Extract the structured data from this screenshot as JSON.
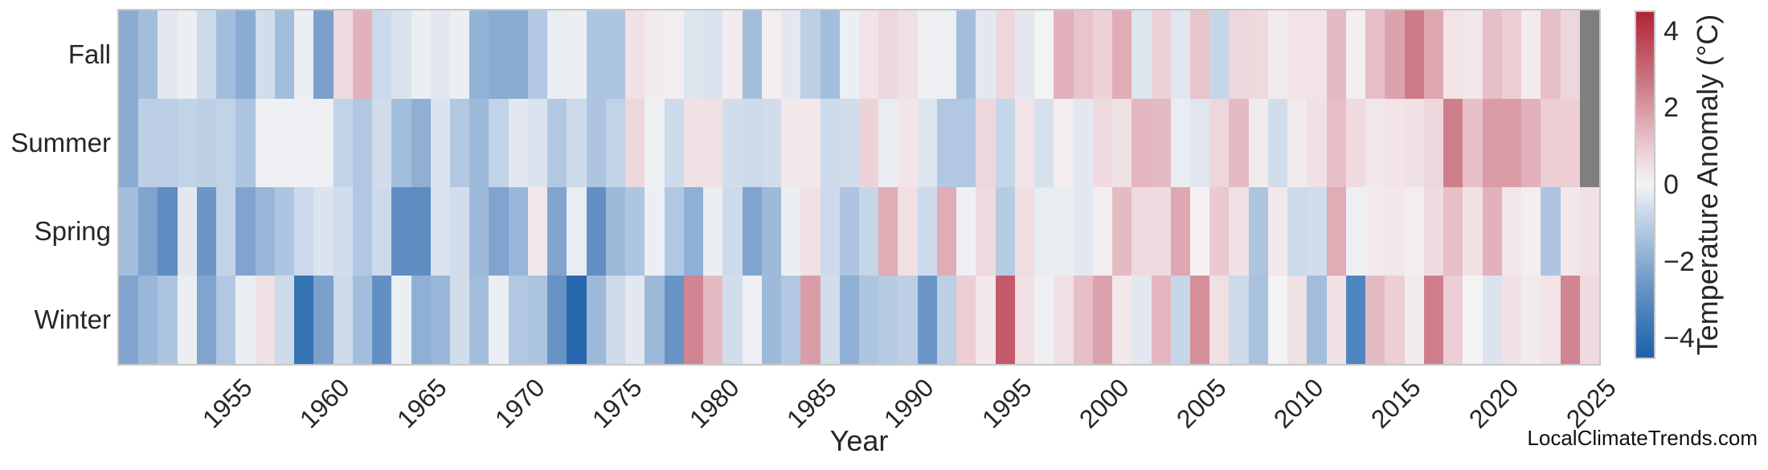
{
  "footer": {
    "watermark": "LocalClimateTrends.com"
  },
  "chart_data": {
    "type": "heatmap",
    "xlabel": "Year",
    "rows": [
      "Fall",
      "Summer",
      "Spring",
      "Winter"
    ],
    "years": [
      1950,
      1951,
      1952,
      1953,
      1954,
      1955,
      1956,
      1957,
      1958,
      1959,
      1960,
      1961,
      1962,
      1963,
      1964,
      1965,
      1966,
      1967,
      1968,
      1969,
      1970,
      1971,
      1972,
      1973,
      1974,
      1975,
      1976,
      1977,
      1978,
      1979,
      1980,
      1981,
      1982,
      1983,
      1984,
      1985,
      1986,
      1987,
      1988,
      1989,
      1990,
      1991,
      1992,
      1993,
      1994,
      1995,
      1996,
      1997,
      1998,
      1999,
      2000,
      2001,
      2002,
      2003,
      2004,
      2005,
      2006,
      2007,
      2008,
      2009,
      2010,
      2011,
      2012,
      2013,
      2014,
      2015,
      2016,
      2017,
      2018,
      2019,
      2020,
      2021,
      2022,
      2023,
      2024,
      2025
    ],
    "x_ticks": [
      1955,
      1960,
      1965,
      1970,
      1975,
      1980,
      1985,
      1990,
      1995,
      2000,
      2005,
      2010,
      2015,
      2020,
      2025
    ],
    "series": {
      "Fall": [
        -2.0,
        -1.5,
        -0.3,
        -0.15,
        -0.7,
        -1.5,
        -2.0,
        -0.6,
        -1.5,
        -0.15,
        -2.3,
        0.6,
        1.5,
        -0.7,
        -0.45,
        -0.15,
        -0.3,
        -0.15,
        -1.8,
        -2.0,
        -2.0,
        -1.2,
        -0.2,
        -0.15,
        -1.3,
        -1.3,
        0.45,
        0.2,
        0.15,
        -0.4,
        -0.45,
        0.2,
        -1.5,
        0.15,
        -0.3,
        -1.0,
        -1.5,
        -0.15,
        0.4,
        0.7,
        0.5,
        -0.1,
        -0.1,
        -1.5,
        -0.3,
        0.7,
        -0.3,
        0.0,
        1.5,
        1.1,
        0.8,
        1.6,
        -0.4,
        0.8,
        -0.35,
        1.1,
        -0.8,
        0.7,
        0.65,
        0.2,
        0.4,
        0.4,
        1.3,
        0.1,
        1.2,
        1.8,
        2.6,
        1.7,
        0.4,
        0.3,
        1.2,
        0.9,
        0.2,
        1.2,
        0.7,
        null
      ],
      "Summer": [
        -2.0,
        -1.0,
        -1.0,
        -0.9,
        -1.0,
        -0.9,
        -1.3,
        -0.1,
        -0.1,
        -0.1,
        -0.1,
        -0.9,
        -1.2,
        -0.6,
        -1.5,
        -1.9,
        -0.45,
        -1.2,
        -1.6,
        -0.9,
        -0.3,
        -0.45,
        -1.2,
        -0.7,
        -1.3,
        -0.9,
        0.7,
        -0.1,
        -0.7,
        0.45,
        0.45,
        -0.6,
        -0.7,
        -0.6,
        0.3,
        0.3,
        -0.7,
        -0.6,
        0.8,
        -0.2,
        0.35,
        -0.4,
        -1.2,
        -1.2,
        0.7,
        -0.8,
        0.4,
        -0.5,
        0.15,
        -0.3,
        0.6,
        0.45,
        1.4,
        1.3,
        -0.2,
        -0.35,
        0.7,
        1.3,
        0.2,
        -0.6,
        0.2,
        0.45,
        1.2,
        0.6,
        0.3,
        0.4,
        0.45,
        0.7,
        2.5,
        1.2,
        1.9,
        1.9,
        1.5,
        0.9,
        0.9,
        null
      ],
      "Spring": [
        -1.5,
        -2.2,
        -2.9,
        -0.3,
        -2.6,
        -0.9,
        -2.2,
        -1.7,
        -1.3,
        -0.7,
        -0.45,
        -0.6,
        -1.2,
        -0.7,
        -2.9,
        -2.9,
        -0.45,
        -0.6,
        -1.6,
        -2.2,
        -1.7,
        0.3,
        -2.2,
        -0.2,
        -2.8,
        -1.6,
        -1.3,
        -0.15,
        -1.2,
        -1.9,
        -0.15,
        -0.7,
        -2.2,
        -1.6,
        -0.15,
        0.45,
        -0.7,
        -1.3,
        -0.8,
        1.6,
        0.5,
        -0.7,
        1.6,
        -0.1,
        0.6,
        -1.1,
        0.55,
        -0.2,
        -0.2,
        -0.3,
        0.15,
        1.3,
        0.6,
        0.6,
        1.7,
        0.05,
        1.0,
        0.45,
        -1.3,
        0.3,
        -0.7,
        -0.6,
        1.6,
        -0.1,
        0.2,
        0.3,
        0.15,
        0.6,
        1.2,
        0.45,
        1.5,
        0.3,
        0.15,
        -1.3,
        0.3,
        0.45
      ],
      "Winter": [
        -2.2,
        -1.7,
        -1.3,
        -0.15,
        -2.2,
        -1.2,
        -0.15,
        0.45,
        -0.7,
        -3.8,
        -2.3,
        -0.7,
        -1.5,
        -2.8,
        -0.15,
        -1.9,
        -1.7,
        -0.6,
        -1.5,
        -0.15,
        -1.2,
        -1.3,
        -2.7,
        -4.2,
        -1.6,
        -0.7,
        -0.3,
        -1.6,
        -2.7,
        2.4,
        1.3,
        -0.6,
        -0.1,
        -1.6,
        -1.2,
        1.9,
        -0.6,
        -1.9,
        -1.3,
        -1.1,
        -1.0,
        -2.6,
        -1.0,
        0.9,
        0.3,
        3.3,
        0.5,
        -0.1,
        0.5,
        1.2,
        1.8,
        0.3,
        -0.3,
        1.4,
        -0.8,
        2.2,
        0.5,
        -0.7,
        -1.4,
        0.0,
        0.45,
        -1.5,
        0.45,
        -3.2,
        1.3,
        0.9,
        0.2,
        2.5,
        0.9,
        0.0,
        -0.45,
        0.45,
        0.2,
        0.4,
        2.4,
        0.6
      ]
    },
    "colorbar": {
      "label": "Temperature Anomaly (°C)",
      "ticks": [
        4,
        2,
        0,
        -2,
        -4
      ],
      "vmin": -4.5,
      "vmax": 4.5
    },
    "colors": {
      "missing": "#7f7f7f",
      "frame": "#c8c8c8",
      "scale_stops": [
        [
          -4.5,
          "#1f60a9"
        ],
        [
          -3.5,
          "#417cb9"
        ],
        [
          -2.5,
          "#7199c8"
        ],
        [
          -1.5,
          "#a3bedc"
        ],
        [
          -0.75,
          "#c9d8ea"
        ],
        [
          0,
          "#f4f3f4"
        ],
        [
          0.75,
          "#eed5da"
        ],
        [
          1.5,
          "#e2b1bb"
        ],
        [
          2.5,
          "#cf7f8c"
        ],
        [
          3.5,
          "#c05162"
        ],
        [
          4.5,
          "#ae2433"
        ]
      ]
    },
    "legend_position": "right",
    "grid": false
  }
}
